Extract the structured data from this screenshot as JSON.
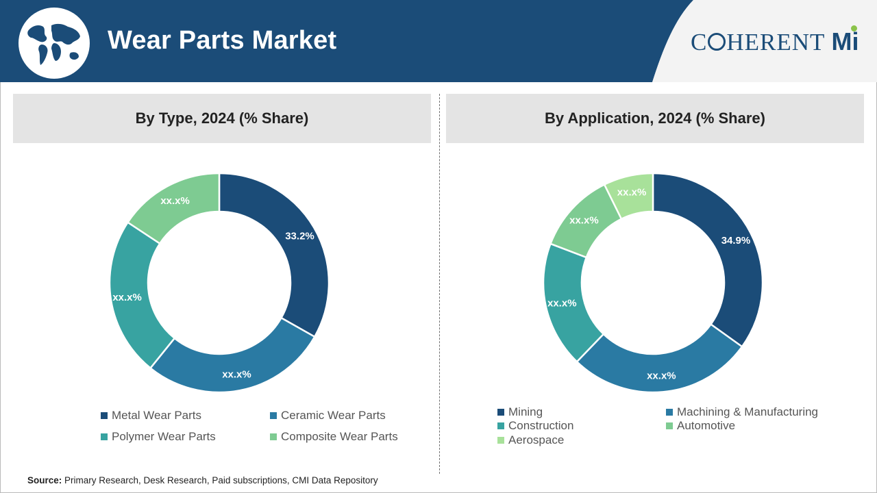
{
  "header": {
    "title": "Wear Parts Market",
    "brand": {
      "prefix": "C",
      "middle": "HERENT",
      "suffix": "Mi"
    },
    "colors": {
      "banner": "#1b4c78",
      "brand": "#1b4c78",
      "brand_accent": "#8bc34a"
    }
  },
  "source": {
    "label": "Source:",
    "text": " Primary Research, Desk Research, Paid subscriptions, CMI Data Repository"
  },
  "chart_data": [
    {
      "type": "pie",
      "variant": "donut",
      "title": "By Type, 2024 (% Share)",
      "categories": [
        "Metal Wear Parts",
        "Ceramic Wear Parts",
        "Polymer Wear Parts",
        "Composite Wear Parts"
      ],
      "values": [
        33.2,
        27.6,
        23.5,
        15.7
      ],
      "labels": [
        "33.2%",
        "xx.x%",
        "xx.x%",
        "xx.x%"
      ],
      "colors": [
        "#1b4c78",
        "#2a7aa3",
        "#38a3a1",
        "#7ecb92"
      ],
      "legend": "bottom"
    },
    {
      "type": "pie",
      "variant": "donut",
      "title": "By Application, 2024 (% Share)",
      "categories": [
        "Mining",
        "Machining & Manufacturing",
        "Construction",
        "Automotive",
        "Aerospace"
      ],
      "values": [
        34.9,
        27.3,
        18.6,
        11.9,
        7.3
      ],
      "labels": [
        "34.9%",
        "xx.x%",
        "xx.x%",
        "xx.x%",
        "xx.x%"
      ],
      "colors": [
        "#1b4c78",
        "#2a7aa3",
        "#38a3a1",
        "#7ecb92",
        "#a8e19a"
      ],
      "legend": "bottom"
    }
  ]
}
